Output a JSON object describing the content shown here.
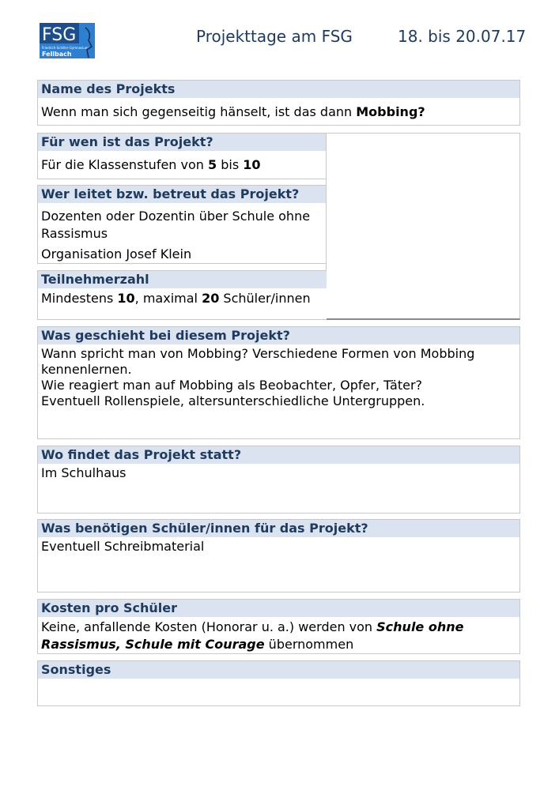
{
  "header": {
    "logo_text": "FSG",
    "logo_subtitle": "Friedrich-Schiller-Gymnasium",
    "logo_city": "Fellbach",
    "title": "Projekttage am FSG",
    "dates": "18. bis 20.07.17",
    "colors": {
      "heading": "#1f3a5f",
      "band": "#dae3ef",
      "logo": "#2f7fd0"
    }
  },
  "name": {
    "label": "Name des Projekts",
    "text": "Wenn man sich gegenseitig hänselt, ist das dann ",
    "bold": "Mobbing?"
  },
  "fuer_wen": {
    "label": "Für wen ist das Projekt?",
    "t1": "Für die Klassenstufen von ",
    "b1": "5",
    "t2": " bis ",
    "b2": "10"
  },
  "leitung": {
    "label": "Wer leitet bzw. betreut das Projekt?",
    "line1": "Dozenten oder Dozentin über Schule ohne Rassismus",
    "line2": "Organisation Josef Klein"
  },
  "teilnehmer": {
    "label": "Teilnehmerzahl",
    "t1": "Mindestens ",
    "b1": "10",
    "t2": ", maximal ",
    "b2": "20",
    "t3": " Schüler/innen"
  },
  "geschieht": {
    "label": "Was geschieht bei diesem Projekt?",
    "line1": "Wann spricht man von Mobbing? Verschiedene Formen von Mobbing kennenlernen.",
    "line2": "Wie reagiert man auf Mobbing als Beobachter, Opfer, Täter?",
    "line3": "Eventuell Rollenspiele, altersunterschiedliche Untergruppen."
  },
  "ort": {
    "label": "Wo findet das Projekt statt?",
    "text": "Im Schulhaus"
  },
  "material": {
    "label": "Was benötigen Schüler/innen für das Projekt?",
    "text": "Eventuell Schreibmaterial"
  },
  "kosten": {
    "label": "Kosten pro Schüler",
    "t1": "Keine, anfallende Kosten (Honorar u. a.) werden von ",
    "bi": "Schule ohne Rassismus, Schule mit Courage",
    "t2": " übernommen"
  },
  "sonstiges": {
    "label": "Sonstiges",
    "text": ""
  }
}
